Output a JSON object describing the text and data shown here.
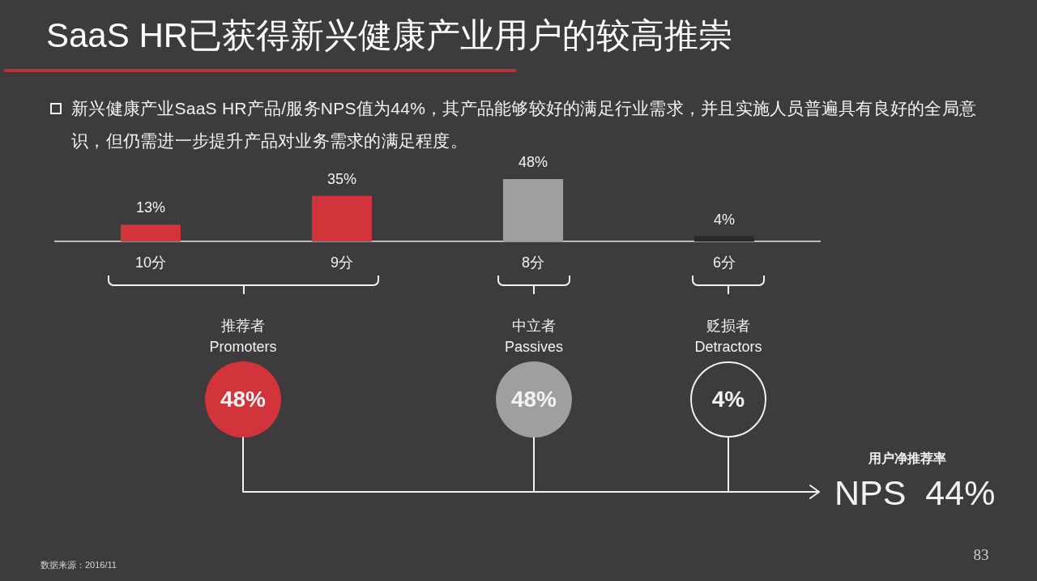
{
  "chart_data": {
    "type": "bar",
    "title": "SaaS HR已获得新兴健康产业用户的较高推崇",
    "subtitle": "新兴健康产业SaaS HR产品/服务NPS值为44%，其产品能够较好的满足行业需求，并且实施人员普遍具有良好的全局意识，但仍需进一步提升产品对业务需求的满足程度。",
    "categories": [
      "10分",
      "9分",
      "8分",
      "6分"
    ],
    "values": [
      13,
      35,
      48,
      4
    ],
    "colors": [
      "#d2343b",
      "#d2343b",
      "#a09ea0",
      "#2a282a"
    ],
    "value_labels": [
      "13%",
      "35%",
      "48%",
      "4%"
    ],
    "grid": false,
    "legend": false,
    "tick_labels": "x",
    "annotations": [
      "推荐者",
      "Promoters",
      "中立者",
      "Passives",
      "贬损者",
      "Detractors",
      "48%",
      "48%",
      "4%",
      "用户净推荐率",
      "NPS  44%",
      "数据来源：2016/11",
      "83"
    ]
  }
}
